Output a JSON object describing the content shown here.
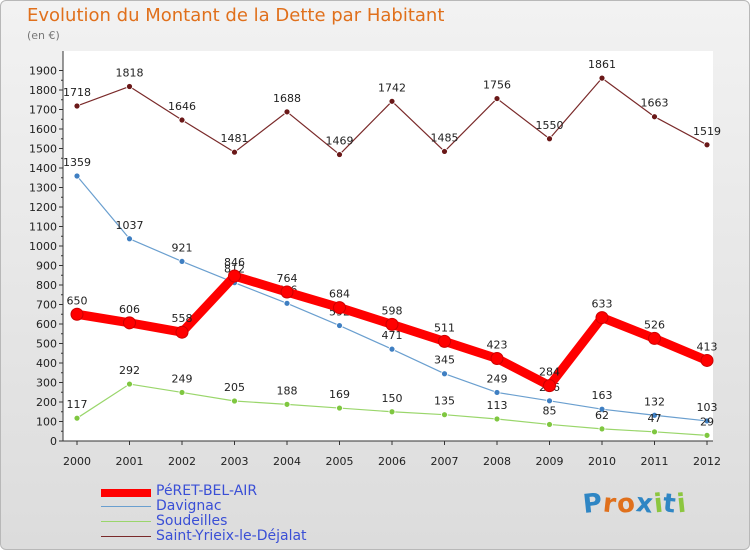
{
  "title": "Evolution du Montant de la Dette par Habitant",
  "subtitle": "(en €)",
  "logo": {
    "text": "Proxiti",
    "letters": [
      "P",
      "r",
      "o",
      "x",
      "i",
      "t",
      "i"
    ],
    "colors": [
      "#2f86c4",
      "#e0701c",
      "#e0701c",
      "#2f86c4",
      "#8cc63f",
      "#2f86c4",
      "#8cc63f"
    ]
  },
  "chart_data": {
    "type": "line",
    "title": "Evolution du Montant de la Dette par Habitant",
    "subtitle": "(en €)",
    "xlabel": "",
    "ylabel": "",
    "categories": [
      "2000",
      "2001",
      "2002",
      "2003",
      "2004",
      "2005",
      "2006",
      "2007",
      "2008",
      "2009",
      "2010",
      "2011",
      "2012"
    ],
    "yticks": [
      "0",
      "100",
      "200",
      "300",
      "400",
      "500",
      "600",
      "700",
      "800",
      "900",
      "1000",
      "1100",
      "1200",
      "1300",
      "1400",
      "1500",
      "1600",
      "1700",
      "1800",
      "1900"
    ],
    "ylim": [
      0,
      1900
    ],
    "grid": false,
    "legend_position": "bottom-left",
    "series": [
      {
        "name": "PéRET-BEL-AIR",
        "color": "#ff0000",
        "point_color": "#ff0000",
        "weight": "thick",
        "values": [
          650,
          606,
          558,
          846,
          764,
          684,
          598,
          511,
          423,
          284,
          633,
          526,
          413
        ]
      },
      {
        "name": "Davignac",
        "color": "#6a9fcf",
        "point_color": "#3f7fc2",
        "weight": "thin",
        "values": [
          1359,
          1037,
          921,
          812,
          706,
          592,
          471,
          345,
          249,
          206,
          163,
          132,
          103
        ]
      },
      {
        "name": "Soudeilles",
        "color": "#9ad66b",
        "point_color": "#7fc740",
        "weight": "thin",
        "values": [
          117,
          292,
          249,
          205,
          188,
          169,
          150,
          135,
          113,
          85,
          62,
          47,
          29
        ]
      },
      {
        "name": "Saint-Yrieix-le-Déjalat",
        "color": "#7a2a2a",
        "point_color": "#6a1818",
        "weight": "thin",
        "values": [
          1718,
          1818,
          1646,
          1481,
          1688,
          1469,
          1742,
          1485,
          1756,
          1550,
          1861,
          1663,
          1519
        ]
      }
    ]
  }
}
